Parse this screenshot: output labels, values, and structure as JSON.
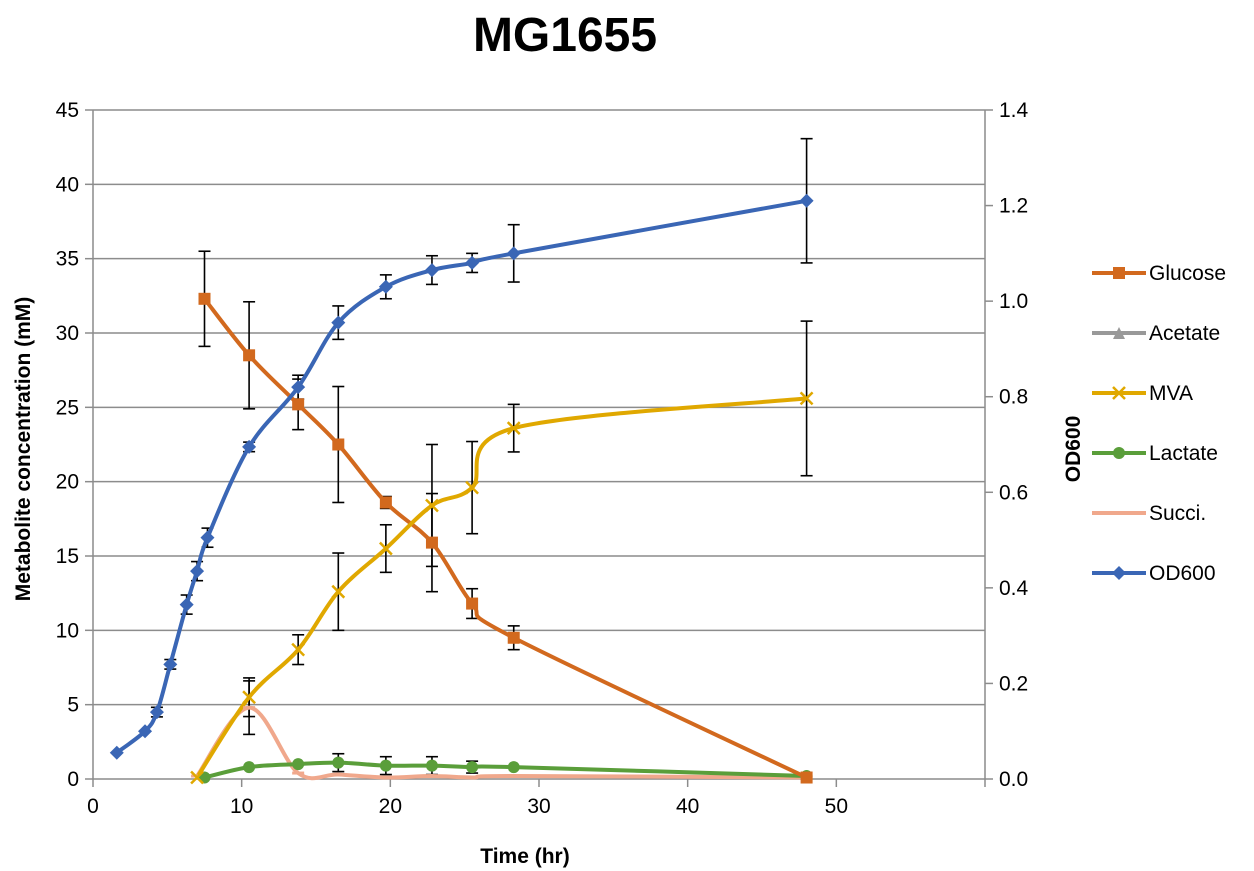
{
  "chart_data": {
    "type": "line",
    "title": "MG1655",
    "xlabel": "Time (hr)",
    "ylabel": "Metabolite concentration (mM)",
    "y2label": "OD600",
    "xlim": [
      0,
      60
    ],
    "ylim": [
      0,
      45
    ],
    "y2lim": [
      0,
      1.4
    ],
    "xticks": [
      "0",
      "10",
      "20",
      "30",
      "40",
      "50"
    ],
    "yticks": [
      "0",
      "5",
      "10",
      "15",
      "20",
      "25",
      "30",
      "35",
      "40",
      "45"
    ],
    "y2ticks": [
      "0.0",
      "0.2",
      "0.4",
      "0.6",
      "0.8",
      "1.0",
      "1.2",
      "1.4"
    ],
    "grid": "horizontal",
    "legend_position": "right",
    "series": [
      {
        "name": "Glucose",
        "color": "#D2691E",
        "marker": "square",
        "axis": "left",
        "x": [
          7.5,
          10.5,
          13.8,
          16.5,
          19.7,
          22.8,
          25.5,
          28.3,
          48
        ],
        "y": [
          32.3,
          28.5,
          25.2,
          22.5,
          18.6,
          15.9,
          11.8,
          9.5,
          0.1
        ],
        "err": [
          3.2,
          3.6,
          1.7,
          3.9,
          0.4,
          3.3,
          1.0,
          0.8,
          0
        ]
      },
      {
        "name": "Acetate",
        "color": "#999999",
        "marker": "triangle",
        "axis": "left",
        "x": [],
        "y": [],
        "err": []
      },
      {
        "name": "MVA",
        "color": "#E0A800",
        "marker": "x",
        "axis": "left",
        "x": [
          7.0,
          10.5,
          13.8,
          16.5,
          19.7,
          22.8,
          25.5,
          28.3,
          48
        ],
        "y": [
          0.1,
          5.5,
          8.7,
          12.6,
          15.5,
          18.4,
          19.6,
          23.6,
          25.6
        ],
        "err": [
          0,
          1.3,
          1.0,
          2.6,
          1.6,
          4.1,
          3.1,
          1.6,
          5.2
        ]
      },
      {
        "name": "Lactate",
        "color": "#5A9E3A",
        "marker": "circle",
        "axis": "left",
        "x": [
          7.5,
          10.5,
          13.8,
          16.5,
          19.7,
          22.8,
          25.5,
          28.3,
          48
        ],
        "y": [
          0.1,
          0.8,
          1.0,
          1.1,
          0.9,
          0.9,
          0.8,
          0.8,
          0.2
        ],
        "err": [
          0,
          0,
          0,
          0.6,
          0.6,
          0.6,
          0.4,
          0,
          0
        ]
      },
      {
        "name": "Succi.",
        "color": "#F0A88C",
        "marker": "dash",
        "axis": "left",
        "x": [
          7.0,
          10.5,
          13.8,
          16.5,
          19.7,
          22.8,
          25.5,
          28.3,
          48
        ],
        "y": [
          0.2,
          4.8,
          0.4,
          0.3,
          0.1,
          0.2,
          0.1,
          0.2,
          0.1
        ],
        "err": [
          0,
          1.8,
          0,
          0,
          0,
          0,
          0,
          0,
          0
        ]
      },
      {
        "name": "OD600",
        "color": "#3A66B5",
        "marker": "diamond",
        "axis": "right",
        "x": [
          1.6,
          3.5,
          4.3,
          5.2,
          6.3,
          7.0,
          7.7,
          10.5,
          13.8,
          16.5,
          19.7,
          22.8,
          25.5,
          28.3,
          48
        ],
        "y": [
          0.055,
          0.1,
          0.14,
          0.24,
          0.365,
          0.435,
          0.505,
          0.695,
          0.82,
          0.955,
          1.03,
          1.065,
          1.08,
          1.1,
          1.21
        ],
        "err": [
          0,
          0,
          0.01,
          0.01,
          0.02,
          0.02,
          0.02,
          0.01,
          0.025,
          0.035,
          0.025,
          0.03,
          0.02,
          0.06,
          0.13
        ]
      }
    ]
  }
}
